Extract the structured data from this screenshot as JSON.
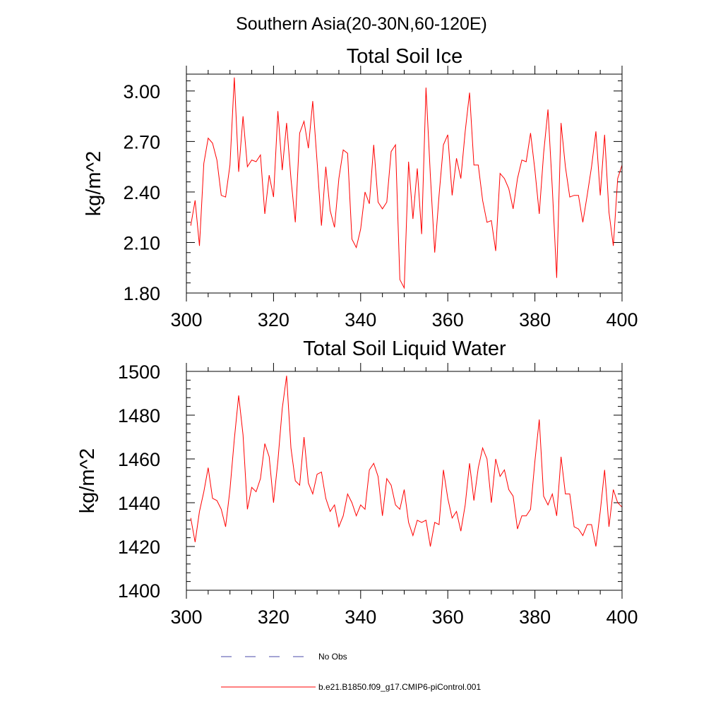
{
  "figure": {
    "super_title": "Southern Asia(20-30N,60-120E)"
  },
  "chart_data": [
    {
      "type": "line",
      "title": "Total Soil Ice",
      "xlabel": "",
      "ylabel": "kg/m^2",
      "xlim": [
        300,
        400
      ],
      "ylim": [
        1.8,
        3.1
      ],
      "xticks": [
        300,
        320,
        340,
        360,
        380,
        400
      ],
      "xtick_labels": [
        "300",
        "320",
        "340",
        "360",
        "380",
        "400"
      ],
      "yticks": [
        1.8,
        2.1,
        2.4,
        2.7,
        3.0
      ],
      "ytick_labels": [
        "1.80",
        "2.10",
        "2.40",
        "2.70",
        "3.00"
      ],
      "x_minor_step": 5,
      "y_minor_step": 0.06,
      "series": [
        {
          "name": "b.e21.B1850.f09_g17.CMIP6-piControl.001",
          "color": "#ff0000",
          "x_start": 301,
          "x_step": 1,
          "values": [
            2.2,
            2.35,
            2.08,
            2.57,
            2.72,
            2.69,
            2.59,
            2.38,
            2.37,
            2.56,
            3.08,
            2.52,
            2.85,
            2.55,
            2.59,
            2.58,
            2.62,
            2.27,
            2.5,
            2.37,
            2.88,
            2.53,
            2.81,
            2.48,
            2.22,
            2.75,
            2.82,
            2.66,
            2.94,
            2.58,
            2.2,
            2.55,
            2.29,
            2.19,
            2.48,
            2.65,
            2.63,
            2.12,
            2.07,
            2.18,
            2.4,
            2.33,
            2.68,
            2.34,
            2.3,
            2.34,
            2.64,
            2.68,
            1.88,
            1.83,
            2.58,
            2.24,
            2.54,
            2.15,
            3.02,
            2.5,
            2.04,
            2.38,
            2.68,
            2.74,
            2.38,
            2.6,
            2.48,
            2.76,
            2.99,
            2.56,
            2.56,
            2.35,
            2.22,
            2.23,
            2.05,
            2.51,
            2.48,
            2.42,
            2.3,
            2.48,
            2.59,
            2.58,
            2.75,
            2.53,
            2.27,
            2.63,
            2.89,
            2.42,
            1.89,
            2.81,
            2.55,
            2.37,
            2.38,
            2.38,
            2.22,
            2.38,
            2.55,
            2.76,
            2.38,
            2.74,
            2.28,
            2.08,
            2.48,
            2.56
          ]
        }
      ]
    },
    {
      "type": "line",
      "title": "Total Soil Liquid Water",
      "xlabel": "",
      "ylabel": "kg/m^2",
      "xlim": [
        300,
        400
      ],
      "ylim": [
        1400,
        1500
      ],
      "xticks": [
        300,
        320,
        340,
        360,
        380,
        400
      ],
      "xtick_labels": [
        "300",
        "320",
        "340",
        "360",
        "380",
        "400"
      ],
      "yticks": [
        1400,
        1420,
        1440,
        1460,
        1480,
        1500
      ],
      "ytick_labels": [
        "1400",
        "1420",
        "1440",
        "1460",
        "1480",
        "1500"
      ],
      "x_minor_step": 5,
      "y_minor_step": 4,
      "series": [
        {
          "name": "b.e21.B1850.f09_g17.CMIP6-piControl.001",
          "color": "#ff0000",
          "x_start": 301,
          "x_step": 1,
          "values": [
            1433,
            1422,
            1436,
            1445,
            1456,
            1442,
            1441,
            1437,
            1429,
            1446,
            1469,
            1489,
            1471,
            1437,
            1447,
            1445,
            1451,
            1467,
            1461,
            1440,
            1459,
            1483,
            1498,
            1465,
            1450,
            1448,
            1470,
            1449,
            1444,
            1453,
            1454,
            1442,
            1436,
            1439,
            1429,
            1434,
            1444,
            1440,
            1434,
            1439,
            1437,
            1455,
            1458,
            1452,
            1434,
            1451,
            1448,
            1439,
            1437,
            1446,
            1431,
            1425,
            1432,
            1431,
            1432,
            1420,
            1431,
            1430,
            1455,
            1442,
            1433,
            1436,
            1427,
            1439,
            1458,
            1441,
            1456,
            1465,
            1460,
            1440,
            1460,
            1452,
            1455,
            1446,
            1443,
            1428,
            1434,
            1434,
            1437,
            1459,
            1478,
            1443,
            1439,
            1444,
            1434,
            1461,
            1444,
            1444,
            1429,
            1428,
            1425,
            1430,
            1430,
            1420,
            1436,
            1455,
            1429,
            1446,
            1440,
            1438
          ]
        }
      ]
    }
  ],
  "legend": {
    "entries": [
      {
        "label": "No Obs",
        "color": "#4a4aa8",
        "style": "dashed"
      },
      {
        "label": "b.e21.B1850.f09_g17.CMIP6-piControl.001",
        "color": "#ff0000",
        "style": "solid"
      }
    ]
  }
}
